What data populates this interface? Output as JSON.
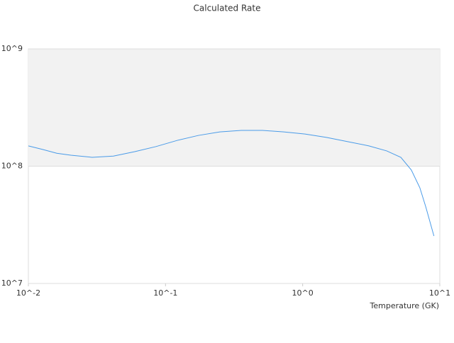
{
  "chart_data": {
    "type": "line",
    "title": "Calculated Rate",
    "x_label": "Temperature (GK)",
    "x": [
      0.01,
      0.0127,
      0.0161,
      0.0204,
      0.0292,
      0.0417,
      0.0596,
      0.0852,
      0.122,
      0.174,
      0.249,
      0.357,
      0.51,
      0.728,
      1.04,
      1.49,
      2.13,
      3.04,
      4.1,
      5.2,
      6.2,
      7.15,
      7.9,
      9.06
    ],
    "series": [
      {
        "name": "Calculated Rate",
        "color": "#4a9be8",
        "values": [
          149000000,
          139000000,
          129000000,
          124000000,
          119000000,
          122000000,
          133000000,
          147000000,
          166000000,
          183000000,
          196000000,
          202000000,
          202000000,
          196000000,
          188000000,
          176000000,
          162000000,
          149000000,
          135000000,
          119000000,
          92700000,
          65500000,
          45000000,
          25400000
        ]
      }
    ],
    "xlim": [
      0.01,
      10
    ],
    "ylim": [
      10000000,
      1000000000
    ],
    "xticks": [
      {
        "value": 0.01,
        "label": "10^-2"
      },
      {
        "value": 0.1,
        "label": "10^-1"
      },
      {
        "value": 1,
        "label": "10^0"
      },
      {
        "value": 10,
        "label": "10^1"
      }
    ],
    "yticks": [
      {
        "value": 10000000,
        "label": "10^7"
      },
      {
        "value": 100000000,
        "label": "10^8"
      },
      {
        "value": 1000000000,
        "label": "10^9"
      }
    ],
    "xscale": "log",
    "yscale": "log",
    "grid": true
  }
}
